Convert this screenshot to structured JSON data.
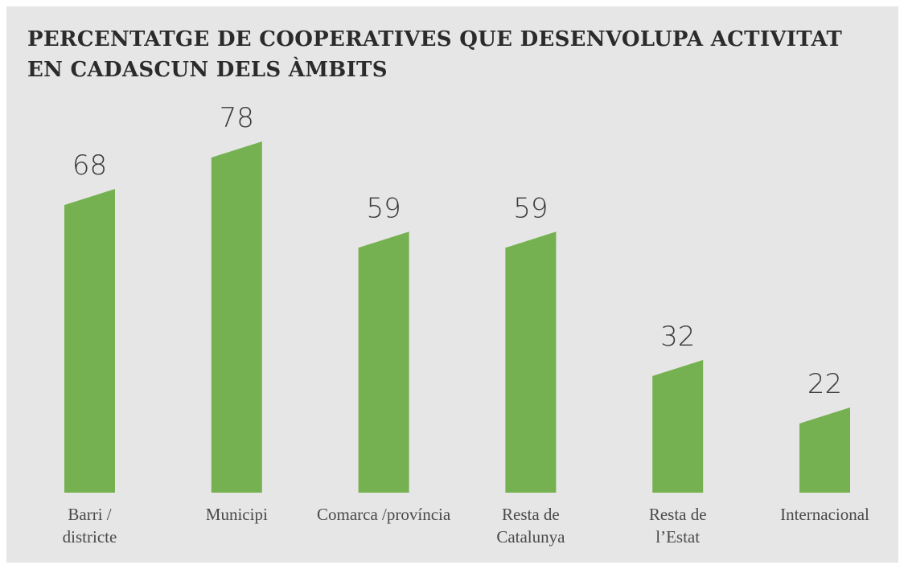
{
  "chart_data": {
    "type": "bar",
    "title": "PERCENTATGE DE COOPERATIVES QUE DESENVOLUPA ACTIVITAT\nEN CADASCUN DELS ÀMBITS",
    "categories": [
      "Barri /\ndistricte",
      "Municipi",
      "Comarca /província",
      "Resta de\nCatalunya",
      "Resta de\nl’Estat",
      "Internacional"
    ],
    "values": [
      68,
      78,
      59,
      59,
      32,
      22
    ],
    "color": "#76b151"
  }
}
